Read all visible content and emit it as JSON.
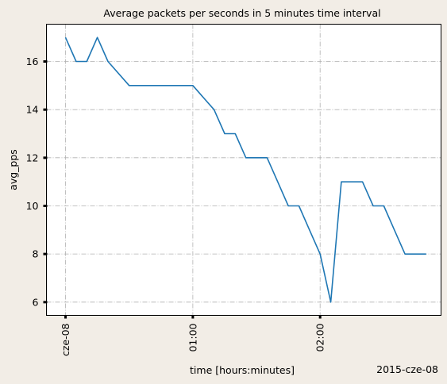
{
  "chart_data": {
    "type": "line",
    "title": "Average packets per seconds in 5 minutes time interval",
    "xlabel": "time [hours:minutes]",
    "ylabel": "avg_pps",
    "x_offset_label": "2015-cze-08",
    "x_ticks": [
      {
        "value": "2015-08-01 00:00",
        "label": "cze-08"
      },
      {
        "value": "2015-08-01 01:00",
        "label": "01:00"
      },
      {
        "value": "2015-08-01 02:00",
        "label": "02:00"
      }
    ],
    "y_ticks": [
      6,
      8,
      10,
      12,
      14,
      16
    ],
    "xlim": [
      "2015-07-31 23:51",
      "2015-08-01 02:57"
    ],
    "ylim": [
      5.45,
      17.55
    ],
    "grid": true,
    "series": [
      {
        "color": "#1f77b4",
        "points": [
          {
            "x": "00:00",
            "y": 17
          },
          {
            "x": "00:05",
            "y": 16
          },
          {
            "x": "00:10",
            "y": 16
          },
          {
            "x": "00:15",
            "y": 17
          },
          {
            "x": "00:20",
            "y": 16
          },
          {
            "x": "00:30",
            "y": 15
          },
          {
            "x": "00:40",
            "y": 15
          },
          {
            "x": "00:50",
            "y": 15
          },
          {
            "x": "01:00",
            "y": 15
          },
          {
            "x": "01:05",
            "y": 14.5
          },
          {
            "x": "01:10",
            "y": 14
          },
          {
            "x": "01:15",
            "y": 13
          },
          {
            "x": "01:20",
            "y": 13
          },
          {
            "x": "01:25",
            "y": 12
          },
          {
            "x": "01:30",
            "y": 12
          },
          {
            "x": "01:35",
            "y": 12
          },
          {
            "x": "01:40",
            "y": 11
          },
          {
            "x": "01:45",
            "y": 10
          },
          {
            "x": "01:50",
            "y": 10
          },
          {
            "x": "01:55",
            "y": 9
          },
          {
            "x": "02:00",
            "y": 8
          },
          {
            "x": "02:05",
            "y": 6
          },
          {
            "x": "02:10",
            "y": 11
          },
          {
            "x": "02:15",
            "y": 11
          },
          {
            "x": "02:20",
            "y": 11
          },
          {
            "x": "02:25",
            "y": 10
          },
          {
            "x": "02:30",
            "y": 10
          },
          {
            "x": "02:35",
            "y": 9
          },
          {
            "x": "02:40",
            "y": 8
          },
          {
            "x": "02:45",
            "y": 8
          },
          {
            "x": "02:50",
            "y": 8
          }
        ]
      }
    ]
  }
}
